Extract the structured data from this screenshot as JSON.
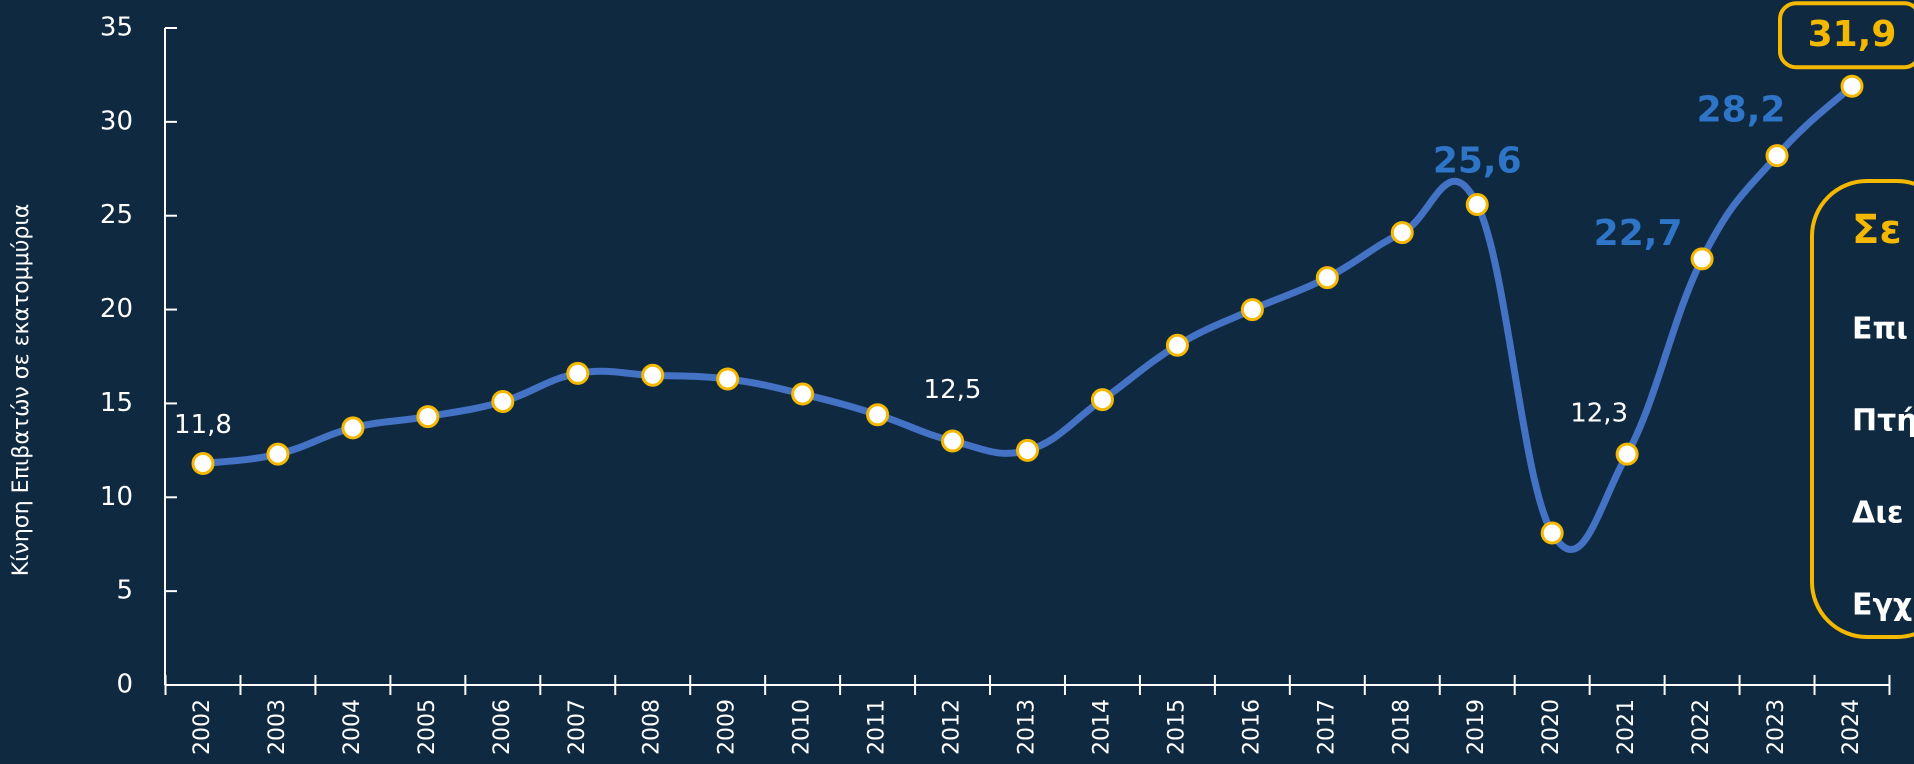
{
  "chart_data": {
    "type": "line",
    "y_label": "Κίνηση Επιβατών σε εκατομμύρια",
    "categories": [
      "2002",
      "2003",
      "2004",
      "2005",
      "2006",
      "2007",
      "2008",
      "2009",
      "2010",
      "2011",
      "2012",
      "2013",
      "2014",
      "2015",
      "2016",
      "2017",
      "2018",
      "2019",
      "2020",
      "2021",
      "2022",
      "2023",
      "2024"
    ],
    "series": [
      {
        "name": "Κίνηση Επιβατών",
        "color": "#4472c4",
        "values": [
          11.8,
          12.3,
          13.7,
          14.3,
          15.1,
          16.6,
          16.5,
          16.3,
          15.5,
          14.4,
          13.0,
          12.5,
          15.2,
          18.1,
          20.0,
          21.7,
          24.1,
          25.6,
          8.1,
          12.3,
          22.7,
          28.2,
          31.9
        ],
        "value_labels": [
          "11,8",
          null,
          null,
          null,
          null,
          null,
          null,
          null,
          null,
          null,
          null,
          "12,5",
          null,
          null,
          null,
          null,
          null,
          "25,6",
          null,
          "12,3",
          "22,7",
          "28,2",
          "31,9"
        ]
      }
    ],
    "ylim": [
      0,
      35
    ],
    "yticks": [
      0,
      5,
      10,
      15,
      20,
      25,
      30,
      35
    ],
    "side_box": {
      "title": "Σε",
      "lines": [
        "Επι",
        "Πτή",
        "Διε",
        "Εγχ"
      ]
    }
  }
}
